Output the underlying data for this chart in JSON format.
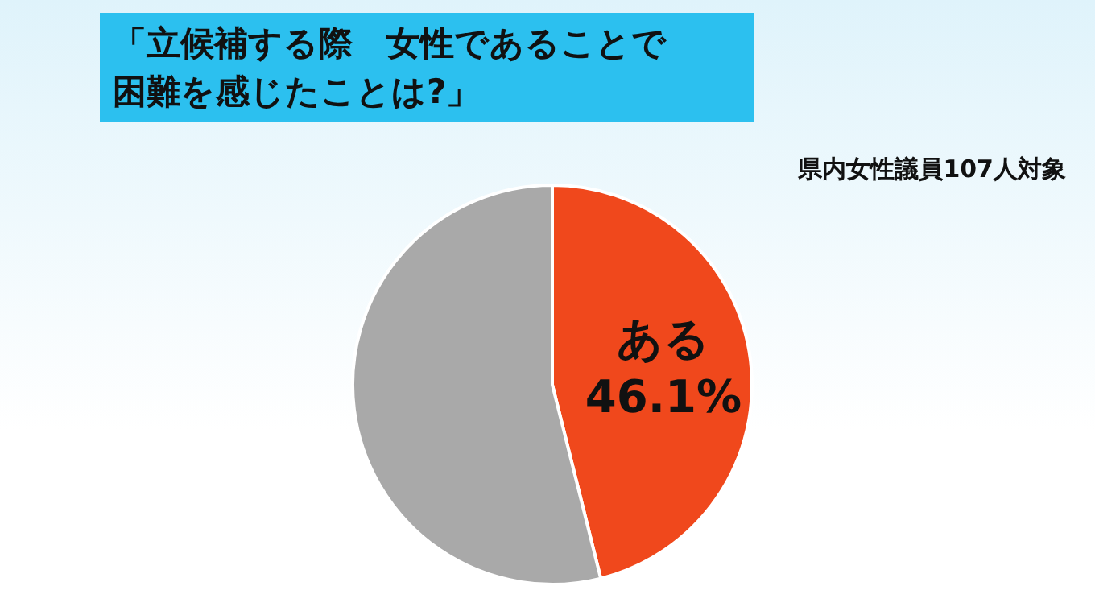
{
  "chart_data": {
    "type": "pie",
    "title": "「立候補する際　女性であることで困難を感じたことは?」",
    "subtitle": "県内女性議員107人対象",
    "categories": [
      "ある",
      null
    ],
    "values": [
      46.1,
      53.9
    ],
    "colors": [
      "#f0481c",
      "#a9a9a9"
    ],
    "value_labels": [
      "46.1%",
      null
    ]
  }
}
